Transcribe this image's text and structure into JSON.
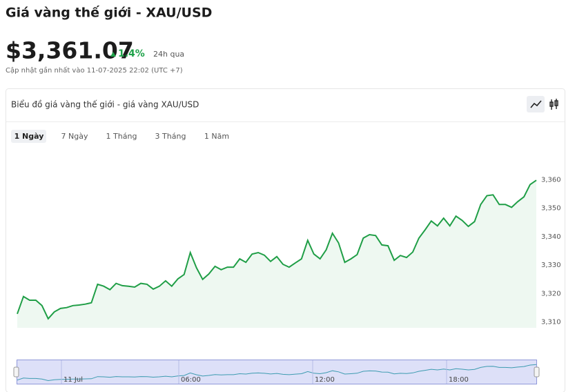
{
  "header": {
    "title": "Giá vàng thế giới - XAU/USD",
    "price": "$3,361.07",
    "change": "1.4%",
    "change_period": "24h qua",
    "updated": "Cập nhật gần nhất vào 11-07-2025 22:02 (UTC +7)"
  },
  "card": {
    "title": "Biểu đồ giá vàng thế giới - giá vàng XAU/USD",
    "tabs": [
      "1 Ngày",
      "7 Ngày",
      "1 Tháng",
      "3 Tháng",
      "1 Năm"
    ]
  },
  "chart_data": {
    "type": "line",
    "series": [
      {
        "name": "XAU/USD",
        "color": "#1f9e46",
        "values": [
          3312.9,
          3319.0,
          3317.7,
          3317.7,
          3315.8,
          3311.2,
          3313.6,
          3314.8,
          3315.1,
          3315.8,
          3316.0,
          3316.3,
          3316.8,
          3323.3,
          3322.6,
          3321.4,
          3323.6,
          3322.8,
          3322.6,
          3322.3,
          3323.6,
          3323.3,
          3321.6,
          3322.6,
          3324.5,
          3322.6,
          3325.2,
          3326.7,
          3334.4,
          3329.1,
          3325.0,
          3326.9,
          3329.6,
          3328.4,
          3329.3,
          3329.3,
          3332.2,
          3331.0,
          3333.9,
          3334.4,
          3333.5,
          3331.3,
          3333.0,
          3330.3,
          3329.3,
          3330.8,
          3332.2,
          3338.7,
          3333.9,
          3332.2,
          3335.4,
          3341.2,
          3337.8,
          3331.0,
          3332.2,
          3333.7,
          3339.5,
          3340.7,
          3340.4,
          3337.1,
          3336.8,
          3331.7,
          3333.4,
          3332.7,
          3334.6,
          3339.5,
          3342.4,
          3345.5,
          3343.8,
          3346.5,
          3343.8,
          3347.2,
          3345.7,
          3343.6,
          3345.3,
          3351.3,
          3354.4,
          3354.7,
          3351.3,
          3351.3,
          3350.3,
          3352.3,
          3354.0,
          3358.3,
          3359.8
        ]
      }
    ],
    "ylim": [
      3308,
      3371
    ],
    "yticks": [
      {
        "value": 3310,
        "label": "3,310"
      },
      {
        "value": 3320,
        "label": "3,320"
      },
      {
        "value": 3330,
        "label": "3,330"
      },
      {
        "value": 3340,
        "label": "3,340"
      },
      {
        "value": 3350,
        "label": "3,350"
      },
      {
        "value": 3360,
        "label": "3,360"
      }
    ],
    "grid": false,
    "navigator_labels": [
      "11 Jul",
      "06:00",
      "12:00",
      "18:00"
    ]
  }
}
